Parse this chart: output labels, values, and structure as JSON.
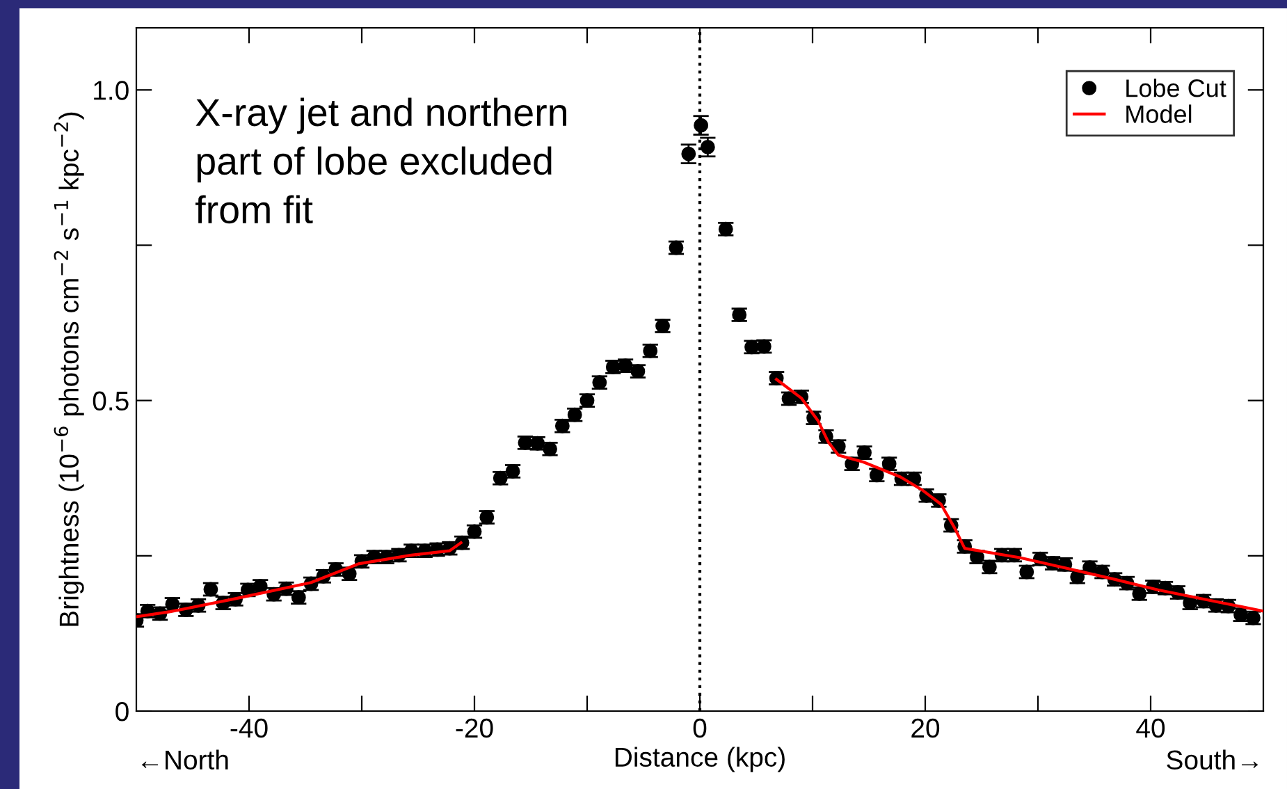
{
  "chart_data": {
    "type": "scatter",
    "xlabel": "Distance (kpc)",
    "ylabel": "Brightness (10$^{−6}$ photons cm$^{−2}$ s$^{−1}$ kpc$^{−2}$)",
    "xlim": [
      -50,
      50
    ],
    "ylim": [
      0,
      1.1
    ],
    "xticks": [
      -40,
      {
        "value": -30,
        "label": null
      },
      -20,
      {
        "value": -10,
        "label": null
      },
      0,
      {
        "value": 10,
        "label": null
      },
      20,
      {
        "value": 30,
        "label": null
      },
      40
    ],
    "yticks": [
      0,
      {
        "value": 0.25,
        "label": null
      },
      0.5,
      {
        "value": 0.75,
        "label": null
      },
      {
        "value": 1.0,
        "label": "1.0"
      }
    ],
    "grid": false,
    "legend": "top right",
    "marker": "circle",
    "series": [
      {
        "name": "Lobe Cut",
        "color": "#000000",
        "x": [
          -50.0,
          -49.0,
          -47.9,
          -46.8,
          -45.6,
          -44.5,
          -43.4,
          -42.3,
          -41.2,
          -40.1,
          -39.0,
          -37.8,
          -36.7,
          -35.6,
          -34.5,
          -33.4,
          -32.3,
          -31.1,
          -30.0,
          -28.9,
          -27.8,
          -26.7,
          -25.6,
          -24.4,
          -23.3,
          -22.2,
          -21.1,
          -20.0,
          -18.9,
          -17.7,
          -16.6,
          -15.5,
          -14.4,
          -13.3,
          -12.2,
          -11.1,
          -10.0,
          -8.9,
          -7.7,
          -6.6,
          -5.5,
          -4.4,
          -3.3,
          -2.1,
          -1.0,
          0.1,
          0.7,
          2.3,
          3.5,
          4.6,
          5.7,
          6.8,
          7.9,
          9.0,
          10.1,
          11.2,
          12.3,
          13.5,
          14.6,
          15.7,
          16.8,
          17.9,
          19.0,
          20.1,
          21.2,
          22.3,
          23.5,
          24.6,
          25.7,
          26.8,
          27.9,
          29.0,
          30.2,
          31.3,
          32.4,
          33.5,
          34.6,
          35.7,
          36.8,
          37.9,
          39.0,
          40.2,
          41.3,
          42.4,
          43.5,
          44.7,
          45.8,
          46.9,
          48.0,
          49.1
        ],
        "values": [
          0.146,
          0.161,
          0.157,
          0.172,
          0.163,
          0.17,
          0.196,
          0.174,
          0.18,
          0.195,
          0.201,
          0.188,
          0.197,
          0.183,
          0.205,
          0.217,
          0.228,
          0.221,
          0.241,
          0.248,
          0.248,
          0.251,
          0.258,
          0.258,
          0.26,
          0.262,
          0.271,
          0.289,
          0.312,
          0.375,
          0.386,
          0.432,
          0.431,
          0.422,
          0.459,
          0.477,
          0.5,
          0.529,
          0.554,
          0.556,
          0.547,
          0.58,
          0.62,
          0.746,
          0.897,
          0.943,
          0.908,
          0.776,
          0.638,
          0.586,
          0.587,
          0.536,
          0.503,
          0.506,
          0.472,
          0.442,
          0.426,
          0.398,
          0.416,
          0.38,
          0.398,
          0.374,
          0.374,
          0.347,
          0.339,
          0.299,
          0.265,
          0.248,
          0.232,
          0.251,
          0.251,
          0.224,
          0.245,
          0.238,
          0.236,
          0.216,
          0.231,
          0.224,
          0.212,
          0.206,
          0.189,
          0.2,
          0.198,
          0.191,
          0.174,
          0.177,
          0.17,
          0.169,
          0.155,
          0.15
        ],
        "errors": [
          0.01,
          0.01,
          0.01,
          0.01,
          0.01,
          0.01,
          0.01,
          0.01,
          0.01,
          0.01,
          0.01,
          0.01,
          0.01,
          0.01,
          0.01,
          0.01,
          0.01,
          0.01,
          0.01,
          0.01,
          0.01,
          0.01,
          0.01,
          0.01,
          0.01,
          0.01,
          0.01,
          0.01,
          0.01,
          0.01,
          0.01,
          0.01,
          0.01,
          0.01,
          0.01,
          0.01,
          0.01,
          0.01,
          0.01,
          0.01,
          0.01,
          0.01,
          0.01,
          0.01,
          0.015,
          0.015,
          0.015,
          0.01,
          0.01,
          0.01,
          0.01,
          0.01,
          0.01,
          0.01,
          0.01,
          0.01,
          0.01,
          0.01,
          0.01,
          0.01,
          0.01,
          0.01,
          0.01,
          0.01,
          0.01,
          0.01,
          0.01,
          0.01,
          0.01,
          0.01,
          0.01,
          0.01,
          0.01,
          0.01,
          0.01,
          0.01,
          0.01,
          0.01,
          0.01,
          0.01,
          0.01,
          0.01,
          0.01,
          0.01,
          0.01,
          0.01,
          0.01,
          0.01,
          0.01,
          0.01
        ]
      },
      {
        "name": "Model",
        "type": "line",
        "color": "#ff0000",
        "marker": "none",
        "line_style": "solid",
        "x": [
          -50.0,
          -47.0,
          -41.2,
          -34.5,
          -30.3,
          -25.6,
          -22.2,
          -21.2,
          0,
          6.8,
          9.0,
          10.5,
          11.4,
          12.3,
          14.5,
          17.8,
          19.8,
          21.4,
          22.6,
          23.5,
          28.4,
          36.6,
          40.7,
          50.0
        ],
        "values": [
          0.152,
          0.16,
          0.181,
          0.207,
          0.237,
          0.251,
          0.258,
          0.271,
          null,
          0.534,
          0.504,
          0.467,
          0.433,
          0.412,
          0.401,
          0.377,
          0.355,
          0.333,
          0.295,
          0.262,
          0.247,
          0.213,
          0.195,
          0.161
        ]
      }
    ],
    "ref_lines": [
      {
        "axis": "x",
        "value": 0,
        "color": "#000000",
        "line_style": "dotted"
      }
    ],
    "annotations": [
      "X-ray jet and northern\npart of lobe excluded\nfrom fit",
      "←North",
      "South→"
    ]
  }
}
